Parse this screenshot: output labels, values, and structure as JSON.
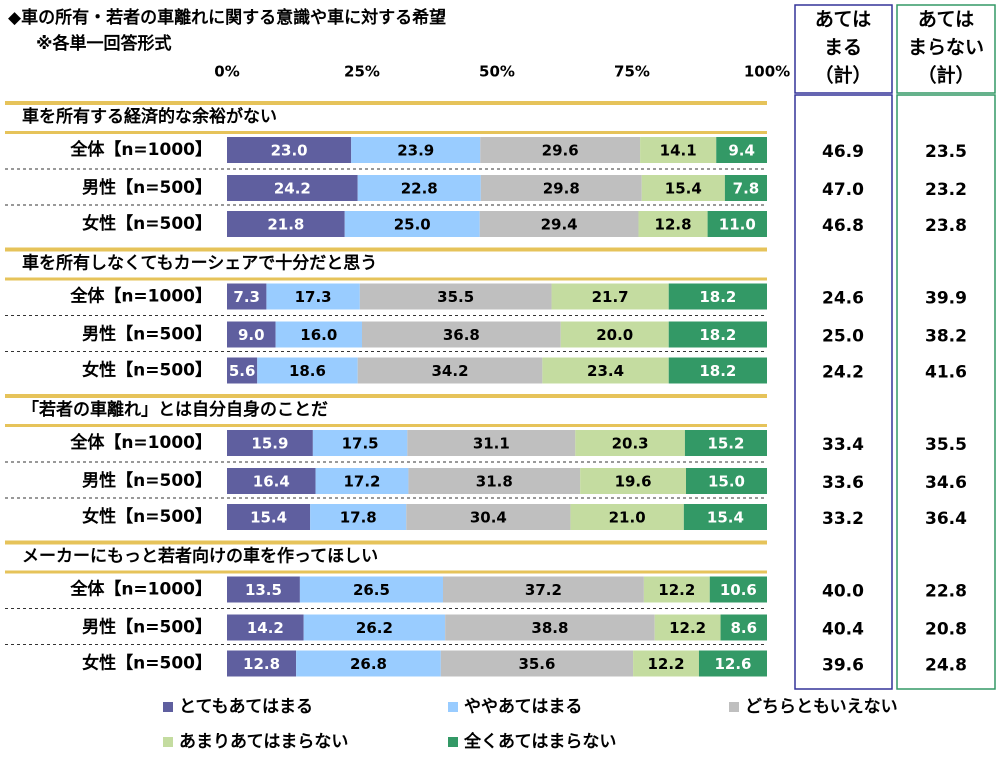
{
  "chart_data": {
    "type": "bar",
    "orientation": "horizontal",
    "stacked": true,
    "title": "◆車の所有・若者の車離れに関する意識や車に対する希望",
    "subtitle": "※各単一回答形式",
    "xlim": [
      0,
      100
    ],
    "xticks": [
      {
        "value": 0,
        "label": "0%"
      },
      {
        "value": 25,
        "label": "25%"
      },
      {
        "value": 50,
        "label": "50%"
      },
      {
        "value": 75,
        "label": "75%"
      },
      {
        "value": 100,
        "label": "100%"
      }
    ],
    "series": [
      {
        "name": "とてもあてはまる",
        "color": "#5f5f9f"
      },
      {
        "name": "ややあてはまる",
        "color": "#99ccff"
      },
      {
        "name": "どちらともいえない",
        "color": "#bfbfbf"
      },
      {
        "name": "あまりあてはまらない",
        "color": "#c4dca0"
      },
      {
        "name": "全くあてはまらない",
        "color": "#339966"
      }
    ],
    "total_columns": [
      {
        "label": [
          "あては",
          "まる",
          "（計）"
        ],
        "color": "#333399"
      },
      {
        "label": [
          "あては",
          "まらない",
          "（計）"
        ],
        "color": "#339966"
      }
    ],
    "groups": [
      {
        "title": "車を所有する経済的な余裕がない",
        "categories": [
          "全体【n=1000】",
          "男性【n=500】",
          "女性【n=500】"
        ],
        "series": [
          {
            "values": [
              23.0,
              24.2,
              21.8
            ],
            "value_labels": [
              "23.0",
              "24.2",
              "21.8"
            ]
          },
          {
            "values": [
              23.9,
              22.8,
              25.0
            ],
            "value_labels": [
              "23.9",
              "22.8",
              "25.0"
            ]
          },
          {
            "values": [
              29.6,
              29.8,
              29.4
            ],
            "value_labels": [
              "29.6",
              "29.8",
              "29.4"
            ]
          },
          {
            "values": [
              14.1,
              15.4,
              12.8
            ],
            "value_labels": [
              "14.1",
              "15.4",
              "12.8"
            ]
          },
          {
            "values": [
              9.4,
              7.8,
              11.0
            ],
            "value_labels": [
              "9.4",
              "7.8",
              "11.0"
            ]
          }
        ],
        "totals": [
          {
            "values": [
              46.9,
              47.0,
              46.8
            ],
            "value_labels": [
              "46.9",
              "47.0",
              "46.8"
            ]
          },
          {
            "values": [
              23.5,
              23.2,
              23.8
            ],
            "value_labels": [
              "23.5",
              "23.2",
              "23.8"
            ]
          }
        ]
      },
      {
        "title": "車を所有しなくてもカーシェアで十分だと思う",
        "categories": [
          "全体【n=1000】",
          "男性【n=500】",
          "女性【n=500】"
        ],
        "series": [
          {
            "values": [
              7.3,
              9.0,
              5.6
            ],
            "value_labels": [
              "7.3",
              "9.0",
              "5.6"
            ]
          },
          {
            "values": [
              17.3,
              16.0,
              18.6
            ],
            "value_labels": [
              "17.3",
              "16.0",
              "18.6"
            ]
          },
          {
            "values": [
              35.5,
              36.8,
              34.2
            ],
            "value_labels": [
              "35.5",
              "36.8",
              "34.2"
            ]
          },
          {
            "values": [
              21.7,
              20.0,
              23.4
            ],
            "value_labels": [
              "21.7",
              "20.0",
              "23.4"
            ]
          },
          {
            "values": [
              18.2,
              18.2,
              18.2
            ],
            "value_labels": [
              "18.2",
              "18.2",
              "18.2"
            ]
          }
        ],
        "totals": [
          {
            "values": [
              24.6,
              25.0,
              24.2
            ],
            "value_labels": [
              "24.6",
              "25.0",
              "24.2"
            ]
          },
          {
            "values": [
              39.9,
              38.2,
              41.6
            ],
            "value_labels": [
              "39.9",
              "38.2",
              "41.6"
            ]
          }
        ]
      },
      {
        "title": "「若者の車離れ」とは自分自身のことだ",
        "categories": [
          "全体【n=1000】",
          "男性【n=500】",
          "女性【n=500】"
        ],
        "series": [
          {
            "values": [
              15.9,
              16.4,
              15.4
            ],
            "value_labels": [
              "15.9",
              "16.4",
              "15.4"
            ]
          },
          {
            "values": [
              17.5,
              17.2,
              17.8
            ],
            "value_labels": [
              "17.5",
              "17.2",
              "17.8"
            ]
          },
          {
            "values": [
              31.1,
              31.8,
              30.4
            ],
            "value_labels": [
              "31.1",
              "31.8",
              "30.4"
            ]
          },
          {
            "values": [
              20.3,
              19.6,
              21.0
            ],
            "value_labels": [
              "20.3",
              "19.6",
              "21.0"
            ]
          },
          {
            "values": [
              15.2,
              15.0,
              15.4
            ],
            "value_labels": [
              "15.2",
              "15.0",
              "15.4"
            ]
          }
        ],
        "totals": [
          {
            "values": [
              33.4,
              33.6,
              33.2
            ],
            "value_labels": [
              "33.4",
              "33.6",
              "33.2"
            ]
          },
          {
            "values": [
              35.5,
              34.6,
              36.4
            ],
            "value_labels": [
              "35.5",
              "34.6",
              "36.4"
            ]
          }
        ]
      },
      {
        "title": "メーカーにもっと若者向けの車を作ってほしい",
        "categories": [
          "全体【n=1000】",
          "男性【n=500】",
          "女性【n=500】"
        ],
        "series": [
          {
            "values": [
              13.5,
              14.2,
              12.8
            ],
            "value_labels": [
              "13.5",
              "14.2",
              "12.8"
            ]
          },
          {
            "values": [
              26.5,
              26.2,
              26.8
            ],
            "value_labels": [
              "26.5",
              "26.2",
              "26.8"
            ]
          },
          {
            "values": [
              37.2,
              38.8,
              35.6
            ],
            "value_labels": [
              "37.2",
              "38.8",
              "35.6"
            ]
          },
          {
            "values": [
              12.2,
              12.2,
              12.2
            ],
            "value_labels": [
              "12.2",
              "12.2",
              "12.2"
            ]
          },
          {
            "values": [
              10.6,
              8.6,
              12.6
            ],
            "value_labels": [
              "10.6",
              "8.6",
              "12.6"
            ]
          }
        ],
        "totals": [
          {
            "values": [
              40.0,
              40.4,
              39.6
            ],
            "value_labels": [
              "40.0",
              "40.4",
              "39.6"
            ]
          },
          {
            "values": [
              22.8,
              20.8,
              24.8
            ],
            "value_labels": [
              "22.8",
              "20.8",
              "24.8"
            ]
          }
        ]
      }
    ]
  }
}
